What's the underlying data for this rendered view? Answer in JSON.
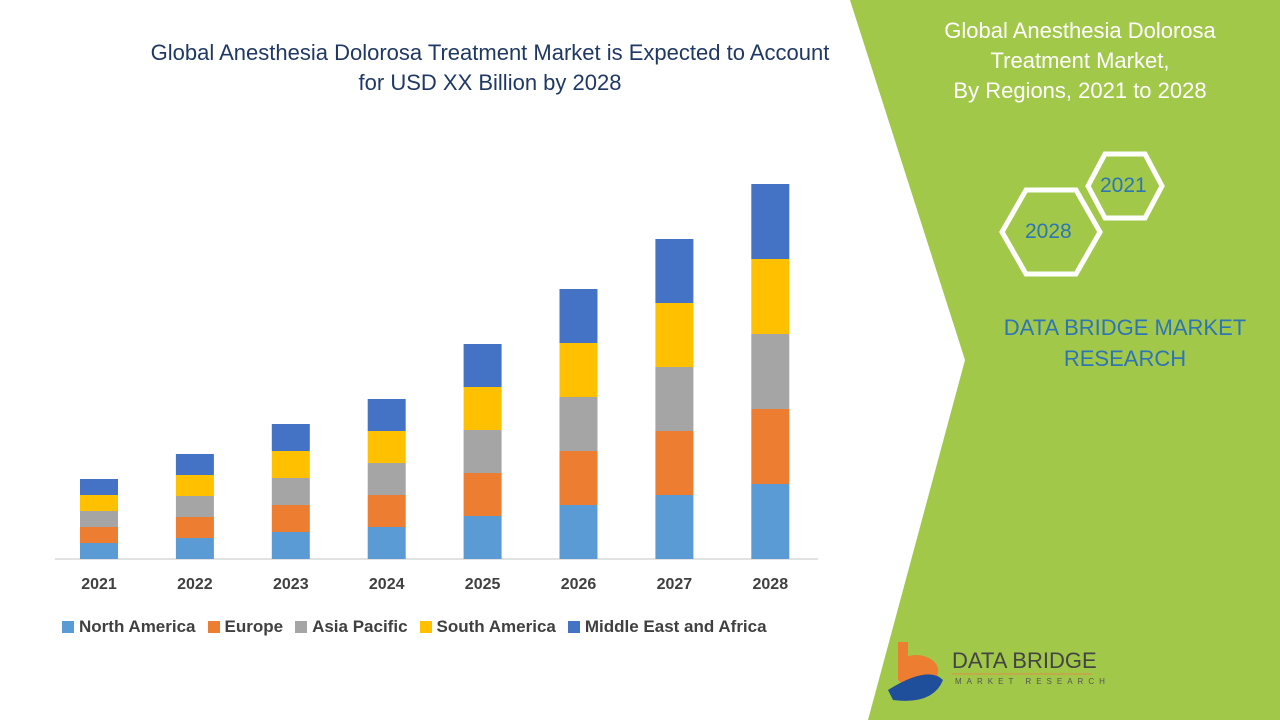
{
  "header": {
    "title_line1": "Global Anesthesia Dolorosa Treatment Market is Expected to Account",
    "title_line2": "for USD XX Billion by 2028"
  },
  "side": {
    "title_line1": "Global Anesthesia Dolorosa",
    "title_line2": "Treatment Market,",
    "title_line3": "By Regions, 2021 to 2028",
    "hex_top": "2021",
    "hex_bottom": "2028",
    "brand_line1": "DATA BRIDGE MARKET",
    "brand_line2": "RESEARCH",
    "logo_name": "DATA BRIDGE",
    "logo_sub": "MARKET RESEARCH",
    "green": "#a2c84a"
  },
  "chart_data": {
    "type": "bar",
    "stacked": true,
    "title": "Global Anesthesia Dolorosa Treatment Market is Expected to Account for USD XX Billion by 2028",
    "categories": [
      "2021",
      "2022",
      "2023",
      "2024",
      "2025",
      "2026",
      "2027",
      "2028"
    ],
    "series": [
      {
        "name": "North America",
        "color": "#5b9bd5",
        "values": [
          1.6,
          2.1,
          2.7,
          3.2,
          4.3,
          5.4,
          6.4,
          7.5
        ]
      },
      {
        "name": "Europe",
        "color": "#ed7d31",
        "values": [
          1.6,
          2.1,
          2.7,
          3.2,
          4.3,
          5.4,
          6.4,
          7.5
        ]
      },
      {
        "name": "Asia Pacific",
        "color": "#a5a5a5",
        "values": [
          1.6,
          2.1,
          2.7,
          3.2,
          4.3,
          5.4,
          6.4,
          7.5
        ]
      },
      {
        "name": "South America",
        "color": "#ffc000",
        "values": [
          1.6,
          2.1,
          2.7,
          3.2,
          4.3,
          5.4,
          6.4,
          7.5
        ]
      },
      {
        "name": "Middle East and Africa",
        "color": "#4472c4",
        "values": [
          1.6,
          2.1,
          2.7,
          3.2,
          4.3,
          5.4,
          6.4,
          7.5
        ]
      }
    ],
    "xlabel": "",
    "ylabel": "",
    "ylim": [
      0,
      40
    ],
    "grid": false,
    "legend": "bottom"
  }
}
